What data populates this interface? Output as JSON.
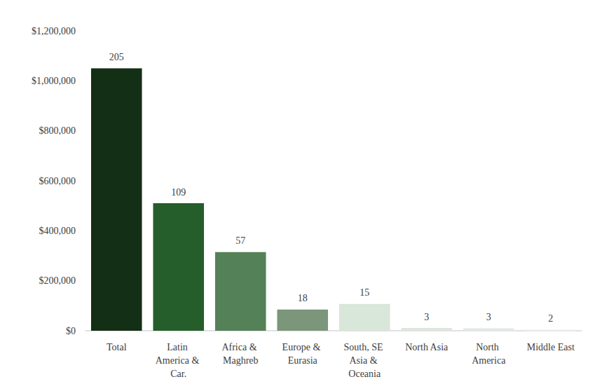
{
  "chart_data": {
    "type": "bar",
    "categories": [
      "Total",
      "Latin America & Car.",
      "Africa & Maghreb",
      "Europe & Eurasia",
      "South, SE Asia & Oceania",
      "North Asia",
      "North America",
      "Middle East"
    ],
    "values": [
      1050000,
      510000,
      315000,
      85000,
      107000,
      11000,
      10000,
      4000
    ],
    "counts": [
      205,
      109,
      57,
      18,
      15,
      3,
      3,
      2
    ],
    "colors": [
      "#132f15",
      "#255d2b",
      "#548157",
      "#7b967b",
      "#d9e6da",
      "#dfe6df",
      "#e3e8e3",
      "#eaeeea"
    ],
    "ylim": [
      0,
      1200000
    ],
    "yticks": [
      {
        "value": 0,
        "label": "$0"
      },
      {
        "value": 200000,
        "label": "$200,000"
      },
      {
        "value": 400000,
        "label": "$400,000"
      },
      {
        "value": 600000,
        "label": "$600,000"
      },
      {
        "value": 800000,
        "label": "$800,000"
      },
      {
        "value": 1000000,
        "label": "$1,000,000"
      },
      {
        "value": 1200000,
        "label": "$1,200,000"
      }
    ],
    "grid": false
  }
}
